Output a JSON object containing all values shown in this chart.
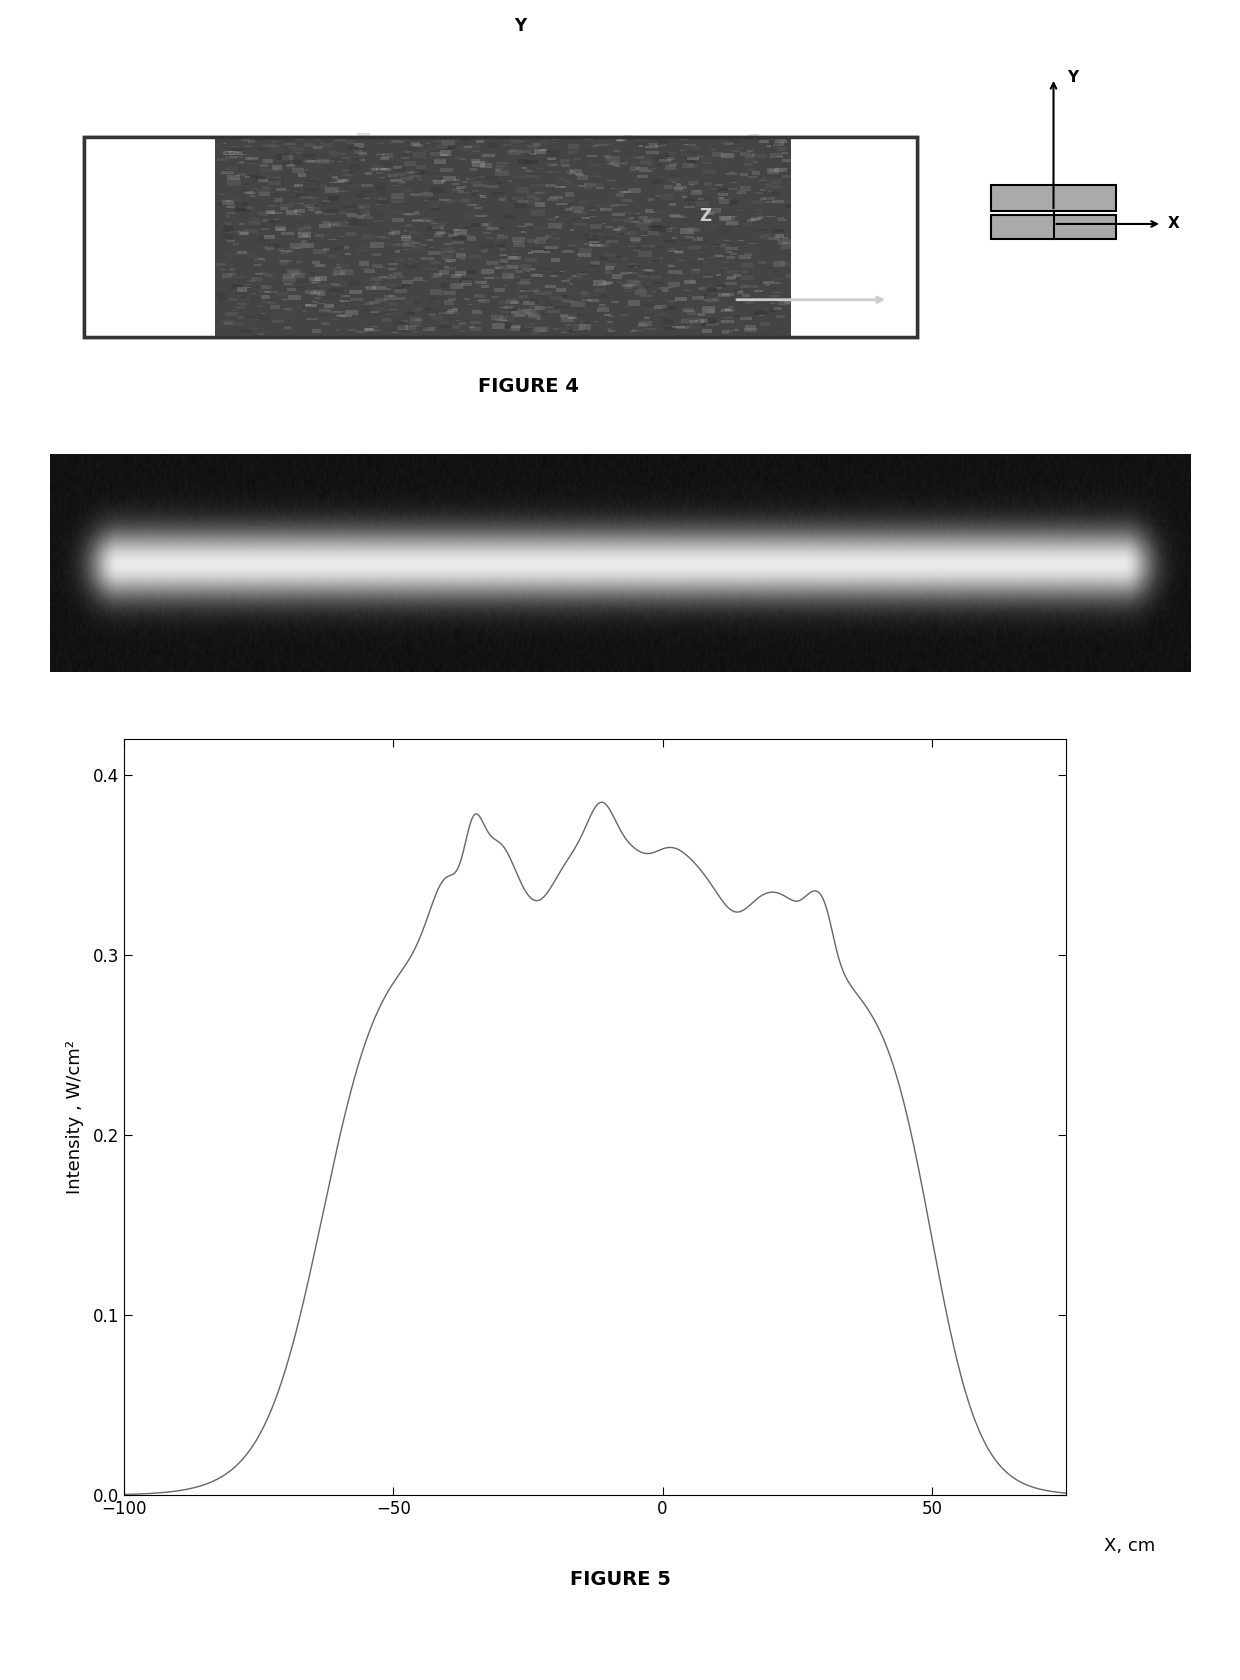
{
  "fig4_title": "FIGURE 4",
  "fig5_title": "FIGURE 5",
  "plot_xlabel": "X, cm",
  "plot_ylabel": "Intensity , W/cm²",
  "plot_xlim": [
    -100,
    75
  ],
  "plot_ylim": [
    0,
    0.42
  ],
  "plot_yticks": [
    0,
    0.1,
    0.2,
    0.3,
    0.4
  ],
  "plot_xticks": [
    -100,
    -50,
    0,
    50
  ],
  "bg_color": "#ffffff"
}
